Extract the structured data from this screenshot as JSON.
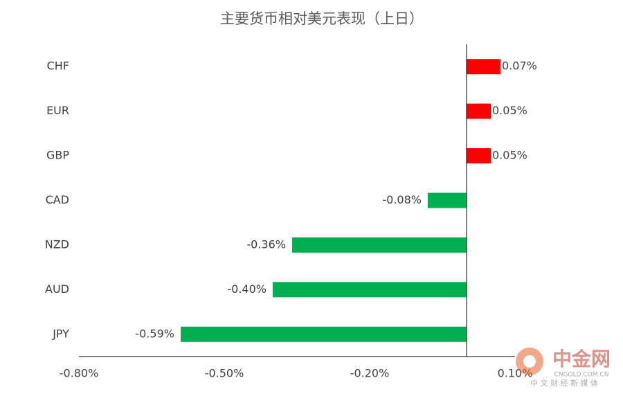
{
  "chart_data": {
    "type": "barh",
    "title": "主要货币相对美元表现（上日）",
    "categories": [
      "CHF",
      "EUR",
      "GBP",
      "CAD",
      "NZD",
      "AUD",
      "JPY"
    ],
    "values": [
      0.07,
      0.05,
      0.05,
      -0.08,
      -0.36,
      -0.4,
      -0.59
    ],
    "value_labels": [
      "0.07%",
      "0.05%",
      "0.05%",
      "-0.08%",
      "-0.36%",
      "-0.40%",
      "-0.59%"
    ],
    "colors": [
      "#ff0000",
      "#ff0000",
      "#ff0000",
      "#00b050",
      "#00b050",
      "#00b050",
      "#00b050"
    ],
    "xlim": [
      -0.8,
      0.1
    ],
    "xticks": [
      {
        "value": -0.8,
        "label": "-0.80%"
      },
      {
        "value": -0.5,
        "label": "-0.50%"
      },
      {
        "value": -0.2,
        "label": "-0.20%"
      },
      {
        "value": 0.1,
        "label": "0.10%"
      }
    ],
    "watermark": {
      "name": "中金网",
      "site": "CNGOLD.COM.CN",
      "tagline": "中 文 财 经 新 媒 体"
    }
  }
}
